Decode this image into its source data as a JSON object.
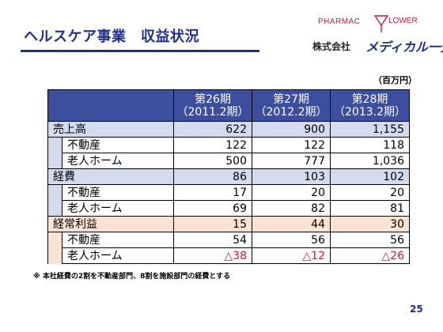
{
  "title": "ヘルスケア事業　収益状況",
  "logo": {
    "pharmac": "PHARMAC",
    "lower": "LOWER",
    "company": "株式会社",
    "brand": "メディカル一光",
    "accent_color": "#c8184a",
    "brand_color": "#1f2f8f"
  },
  "unit_label": "（百万円）",
  "table": {
    "headers": [
      {
        "period": "第26期",
        "date": "（2011.2期）"
      },
      {
        "period": "第27期",
        "date": "（2012.2期）"
      },
      {
        "period": "第28期",
        "date": "（2013.2期）"
      }
    ],
    "rows": [
      {
        "label": "売上高",
        "values": [
          "622",
          "900",
          "1,155"
        ],
        "level": 0,
        "group": "blue"
      },
      {
        "label": "不動産",
        "values": [
          "122",
          "122",
          "118"
        ],
        "level": 1,
        "group": "blue"
      },
      {
        "label": "老人ホーム",
        "values": [
          "500",
          "777",
          "1,036"
        ],
        "level": 1,
        "group": "blue"
      },
      {
        "label": "経費",
        "values": [
          "86",
          "103",
          "102"
        ],
        "level": 0,
        "group": "blue"
      },
      {
        "label": "不動産",
        "values": [
          "17",
          "20",
          "20"
        ],
        "level": 1,
        "group": "blue"
      },
      {
        "label": "老人ホーム",
        "values": [
          "69",
          "82",
          "81"
        ],
        "level": 1,
        "group": "blue"
      },
      {
        "label": "経常利益",
        "values": [
          "15",
          "44",
          "30"
        ],
        "level": 0,
        "group": "peach"
      },
      {
        "label": "不動産",
        "values": [
          "54",
          "56",
          "56"
        ],
        "level": 1,
        "group": "peach"
      },
      {
        "label": "老人ホーム",
        "values": [
          "△38",
          "△12",
          "△26"
        ],
        "level": 1,
        "group": "peach",
        "negative": true
      }
    ]
  },
  "footnote": "※ 本社経費の2割を不動産部門、8割を施設部門の経費とする",
  "page_number": "25"
}
